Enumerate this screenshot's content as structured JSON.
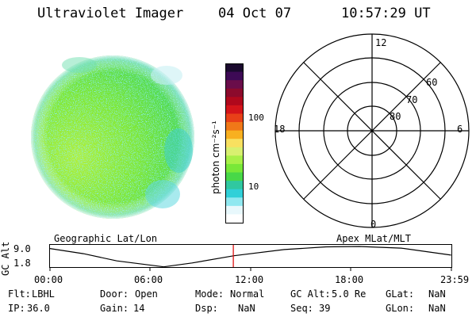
{
  "header": {
    "instrument": "Ultraviolet Imager",
    "date": "04 Oct 07",
    "time": "10:57:29 UT"
  },
  "colorbar": {
    "label": "photon cm⁻²s⁻¹",
    "ticks": [
      "100",
      "10"
    ],
    "colors": [
      "#1a0a2e",
      "#3d0a55",
      "#6a0d4a",
      "#8c0a2c",
      "#b0081c",
      "#d4141a",
      "#e84018",
      "#f07818",
      "#f8b020",
      "#f8e060",
      "#d8f070",
      "#a8f048",
      "#78e838",
      "#48d848",
      "#30c8a0",
      "#30d0d8",
      "#90e8f0",
      "#e8f8fc",
      "#ffffff"
    ]
  },
  "polar": {
    "mlt_labels": {
      "top": "12",
      "left": "18",
      "right": "6",
      "bottom": "0"
    },
    "lat_labels": [
      "60",
      "70",
      "80"
    ]
  },
  "timeline": {
    "ylabel": "GC Alt",
    "ymax_label": "9.0",
    "ymin_label": "1.8",
    "left_title": "Geographic Lat/Lon",
    "right_title": "Apex  MLat/MLT",
    "x_ticks": [
      "00:00",
      "06:00",
      "12:00",
      "18:00",
      "23:59"
    ],
    "current_time_hours": 10.96,
    "marker_color": "#dd0000"
  },
  "footer": {
    "flt_label": "Flt:",
    "flt_value": "LBHL",
    "ip_label": "IP:",
    "ip_value": "36.0",
    "door_label": "Door:",
    "door_value": "Open",
    "gain_label": "Gain:",
    "gain_value": "14",
    "mode_label": "Mode:",
    "mode_value": "Normal",
    "dsp_label": "Dsp:",
    "dsp_value": "NaN",
    "gcalt_label": "GC Alt:",
    "gcalt_value": "5.0 Re",
    "seq_label": "Seq:",
    "seq_value": "39",
    "glat_label": "GLat:",
    "glat_value": "NaN",
    "glon_label": "GLon:",
    "glon_value": "NaN"
  }
}
